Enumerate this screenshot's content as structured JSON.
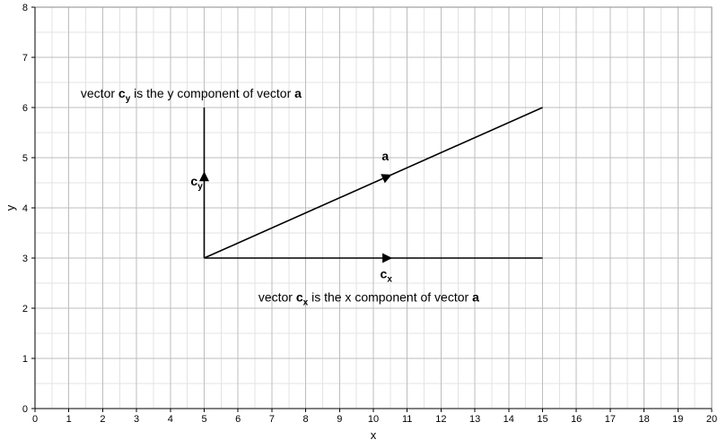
{
  "chart_data": {
    "type": "line",
    "title": "",
    "xlabel": "x",
    "ylabel": "y",
    "xlim": [
      0,
      20
    ],
    "ylim": [
      0,
      8
    ],
    "x_ticks": [
      "0",
      "1",
      "2",
      "3",
      "4",
      "5",
      "6",
      "7",
      "8",
      "9",
      "10",
      "11",
      "12",
      "13",
      "14",
      "15",
      "16",
      "17",
      "18",
      "19",
      "20"
    ],
    "y_ticks": [
      "0",
      "1",
      "2",
      "3",
      "4",
      "5",
      "6",
      "7",
      "8"
    ],
    "grid": {
      "major": true,
      "minor": true,
      "minor_step": 0.5
    },
    "colors": {
      "grid_major": "#bdbdbd",
      "grid_minor": "#e3e3e3",
      "line": "#000000",
      "axis": "#000000"
    },
    "series": [
      {
        "name": "a",
        "label": "a",
        "label_sub": "",
        "x": [
          5,
          15
        ],
        "y": [
          3,
          6
        ],
        "arrow_at": [
          10.4,
          4.62
        ],
        "label_at": [
          10.25,
          4.95
        ]
      },
      {
        "name": "c_x",
        "label": "c",
        "label_sub": "x",
        "x": [
          5,
          15
        ],
        "y": [
          3,
          3
        ],
        "arrow_at": [
          10.4,
          3.0
        ],
        "label_at": [
          10.2,
          2.6
        ]
      },
      {
        "name": "c_y",
        "label": "c",
        "label_sub": "y",
        "x": [
          5,
          5
        ],
        "y": [
          3,
          6
        ],
        "arrow_at": [
          5.0,
          4.62
        ],
        "label_at": [
          4.6,
          4.45
        ]
      }
    ],
    "annotations": [
      {
        "parts": [
          {
            "text": "vector ",
            "bold": false,
            "sub": false
          },
          {
            "text": "c",
            "bold": true,
            "sub": false
          },
          {
            "text": "y",
            "bold": true,
            "sub": true
          },
          {
            "text": " is the y component of vector ",
            "bold": false,
            "sub": false
          },
          {
            "text": "a",
            "bold": true,
            "sub": false
          }
        ],
        "at": [
          1.35,
          6.2
        ]
      },
      {
        "parts": [
          {
            "text": "vector ",
            "bold": false,
            "sub": false
          },
          {
            "text": "c",
            "bold": true,
            "sub": false
          },
          {
            "text": "x",
            "bold": true,
            "sub": true
          },
          {
            "text": " is the x component of vector ",
            "bold": false,
            "sub": false
          },
          {
            "text": "a",
            "bold": true,
            "sub": false
          }
        ],
        "at": [
          6.6,
          2.13
        ]
      }
    ]
  }
}
